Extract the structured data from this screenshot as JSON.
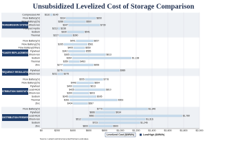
{
  "chart_data": {
    "type": "floating_bar",
    "title": "Unsubsidized Levelized Cost of Storage Comparison",
    "x_label": "Levelized Cost ($/MWh)",
    "legend_label": "Low/High ($/MWh)",
    "source": "Source: Lazard and Enviromental Partners estimates.",
    "color": "#c9dcec",
    "xlim": [
      0,
      2000
    ],
    "xticks": [
      {
        "value": 0,
        "label": "$0"
      },
      {
        "value": 200,
        "label": "$200"
      },
      {
        "value": 400,
        "label": "$400"
      },
      {
        "value": 600,
        "label": "$600"
      },
      {
        "value": 800,
        "label": "$800"
      },
      {
        "value": 1000,
        "label": "$1,000"
      },
      {
        "value": 1200,
        "label": "$1,200"
      },
      {
        "value": 1400,
        "label": "$1,400"
      },
      {
        "value": 1600,
        "label": "$1,600"
      },
      {
        "value": 1800,
        "label": "$1,800"
      },
      {
        "value": 2000,
        "label": "$2,000"
      }
    ],
    "groups": [
      {
        "name": "TRANSMISSION SYSTEM",
        "categories": [
          "Compressed Air",
          "Flow Battery(V)",
          "Flow Battery(Zn)",
          "Lithium-Ion",
          "Pumped Hydro",
          "Sodium",
          "Thermal"
        ],
        "low": [
          116,
          314,
          288,
          347,
          213,
          330,
          227
        ],
        "high": [
          140,
          690,
          560,
          739,
          238,
          541,
          390
        ],
        "low_labels": [
          "$116",
          "$314",
          "$288",
          "$347",
          "$213",
          "$330",
          "$227"
        ],
        "high_labels": [
          "$140",
          "$690",
          "$560",
          "$739",
          "$238",
          "$541",
          "$390"
        ]
      },
      {
        "name": "PEAKER REPLACEMENT",
        "categories": [
          "Flow Battery(V)",
          "Flow Battery(Zn)",
          "Flow Battery(Other)",
          "Flywheel",
          "Lithium-Ion",
          "Sodium",
          "Thermal",
          "Zinc"
        ],
        "low": [
          441,
          285,
          409,
          342,
          365,
          394,
          350,
          277
        ],
        "high": [
          657,
          581,
          550,
          555,
          813,
          1138,
          483,
          658
        ],
        "low_labels": [
          "$441",
          "$285",
          "$409",
          "$342",
          "$365",
          "$394",
          "$350",
          "$277"
        ],
        "high_labels": [
          "$657",
          "$581",
          "$550",
          "$555",
          "$813",
          "$1,138",
          "$483",
          "$658"
        ]
      },
      {
        "name": "FREQUENCY REGULATION",
        "categories": [
          "Flywheel",
          "Lithium-Ion"
        ],
        "low": [
          276,
          211
        ],
        "high": [
          989,
          275
        ],
        "low_labels": [
          "$276",
          "$211"
        ],
        "high_labels": [
          "$989",
          "$275"
        ]
      },
      {
        "name": "DISTRIBUTION SUBSTATION",
        "categories": [
          "Flow Battery(V)",
          "Flow Battery(Zn)",
          "Flywheel",
          "Lead-Acid",
          "Lithium-Ion",
          "Sodium",
          "Thermal",
          "Zinc"
        ],
        "low": [
          555,
          448,
          400,
          425,
          399,
          345,
          361,
          404
        ],
        "high": [
          778,
          664,
          613,
          810,
          603,
          695,
          963,
          587
        ],
        "low_labels": [
          "$555",
          "$448",
          "$400",
          "$425",
          "$399",
          "$345",
          "$361",
          "$404"
        ],
        "high_labels": [
          "$778",
          "$664",
          "$613",
          "$810",
          "$603",
          "$695",
          "$963",
          "$587"
        ]
      },
      {
        "name": "DISTRIBUTION FEEDER",
        "categories": [
          "Flow Battery(V)",
          "Flywheel",
          "Lead-Acid",
          "Lithium-Ion",
          "Sodium",
          "Zinc"
        ],
        "low": [
          779,
          686,
          681,
          512,
          723,
          600
        ],
        "high": [
          1346,
          934,
          1780,
          1316,
          1246,
          900
        ],
        "low_labels": [
          "$779",
          "$686",
          "$681",
          "$512",
          "$723",
          "$600"
        ],
        "high_labels": [
          "$1,346",
          "$934",
          "$1,780",
          "$1,316",
          "$1,246",
          "$900"
        ]
      }
    ]
  }
}
